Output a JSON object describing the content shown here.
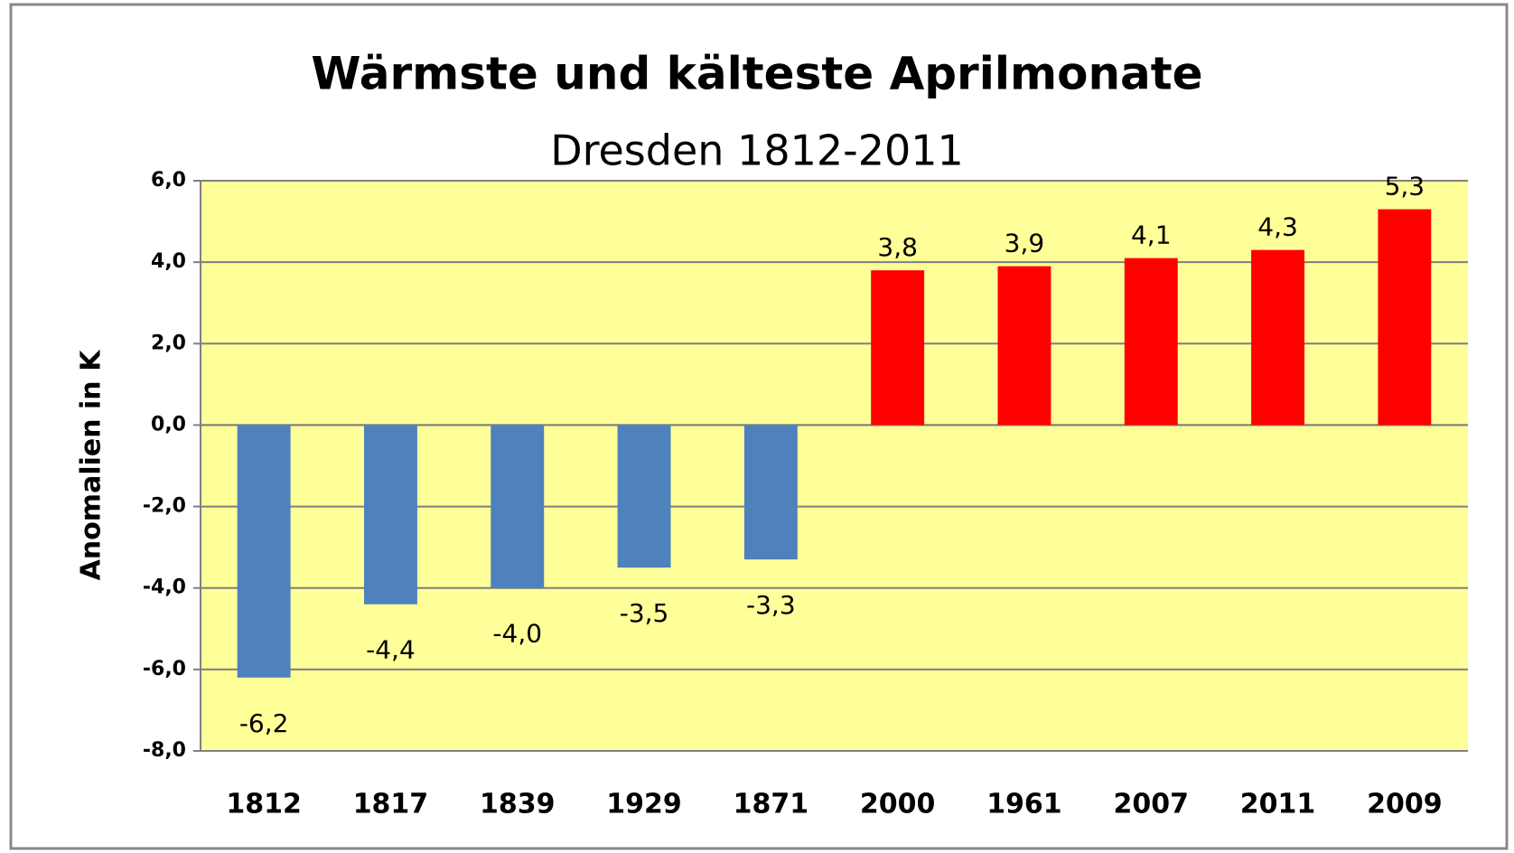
{
  "chart_data": {
    "type": "bar",
    "title": "Wärmste und kälteste Aprilmonate",
    "subtitle": "Dresden 1812-2011",
    "y_label": "Anomalien in K",
    "categories": [
      "1812",
      "1817",
      "1839",
      "1929",
      "1871",
      "2000",
      "1961",
      "2007",
      "2011",
      "2009"
    ],
    "values": [
      -6.2,
      -4.4,
      -4.0,
      -3.5,
      -3.3,
      3.8,
      3.9,
      4.1,
      4.3,
      5.3
    ],
    "value_labels": [
      "-6,2",
      "-4,4",
      "-4,0",
      "-3,5",
      "-3,3",
      "3,8",
      "3,9",
      "4,1",
      "4,3",
      "5,3"
    ],
    "colors": [
      "#4f81bd",
      "#4f81bd",
      "#4f81bd",
      "#4f81bd",
      "#4f81bd",
      "#ff0000",
      "#ff0000",
      "#ff0000",
      "#ff0000",
      "#ff0000"
    ],
    "ylim": [
      -8,
      6
    ],
    "yticks": [
      {
        "value": -8,
        "label": "-8,0"
      },
      {
        "value": -6,
        "label": "-6,0"
      },
      {
        "value": -4,
        "label": "-4,0"
      },
      {
        "value": -2,
        "label": "-2,0"
      },
      {
        "value": 0,
        "label": "0,0"
      },
      {
        "value": 2,
        "label": "2,0"
      },
      {
        "value": 4,
        "label": "4,0"
      },
      {
        "value": 6,
        "label": "6,0"
      }
    ],
    "grid": true
  }
}
